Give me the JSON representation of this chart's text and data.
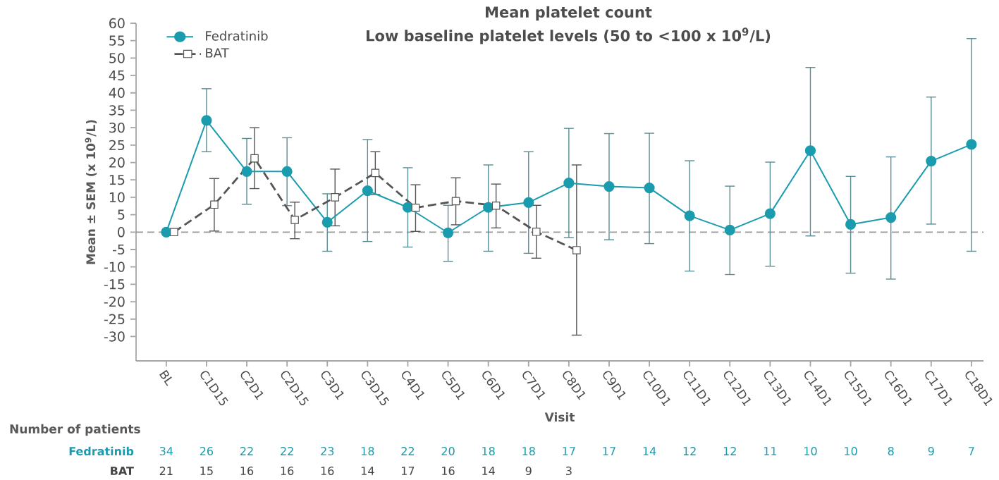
{
  "chart_data": {
    "type": "line",
    "title": "Mean platelet count",
    "subtitle": "Low baseline platelet levels (50 to <100 x 10$^{9}$/L)",
    "xlabel": "Visit",
    "ylabel": "Mean ± SEM (x 10$^{9}$/L)",
    "categories": [
      "BL",
      "C1D15",
      "C2D1",
      "C2D15",
      "C3D1",
      "C3D15",
      "C4D1",
      "C5D1",
      "C6D1",
      "C7D1",
      "C8D1",
      "C9D1",
      "C10D1",
      "C11D1",
      "C12D1",
      "C13D1",
      "C14D1",
      "C15D1",
      "C16D1",
      "C17D1",
      "C18D1"
    ],
    "series": [
      {
        "name": "Fedratinib",
        "color": "#1a9cae",
        "marker": "circle",
        "line_style": "solid",
        "values": [
          0,
          32.1,
          17.4,
          17.4,
          2.8,
          11.9,
          7.1,
          -0.2,
          7.1,
          8.5,
          14.1,
          13.1,
          12.7,
          4.7,
          0.6,
          5.3,
          23.4,
          2.2,
          4.2,
          20.4,
          25.2
        ],
        "errors": [
          null,
          [
            23.1,
            41.2
          ],
          [
            8.0,
            26.9
          ],
          [
            7.6,
            27.1
          ],
          [
            -5.5,
            11.0
          ],
          [
            -2.7,
            26.6
          ],
          [
            -4.3,
            18.5
          ],
          [
            -8.4,
            7.7
          ],
          [
            -5.5,
            19.3
          ],
          [
            -6.1,
            23.1
          ],
          [
            -1.6,
            29.8
          ],
          [
            -2.2,
            28.3
          ],
          [
            -3.3,
            28.4
          ],
          [
            -11.2,
            20.5
          ],
          [
            -12.2,
            13.2
          ],
          [
            -9.8,
            20.1
          ],
          [
            -1.1,
            47.3
          ],
          [
            -11.8,
            16.0
          ],
          [
            -13.5,
            21.6
          ],
          [
            2.3,
            38.8
          ],
          [
            -5.5,
            55.6
          ]
        ]
      },
      {
        "name": "BAT",
        "color": "#555555",
        "marker": "square",
        "line_style": "dashed",
        "values": [
          0,
          7.9,
          21.2,
          3.5,
          10.0,
          17.0,
          7.0,
          8.9,
          7.6,
          0.1,
          -5.2,
          null,
          null,
          null,
          null,
          null,
          null,
          null,
          null,
          null,
          null
        ],
        "errors": [
          null,
          [
            0.3,
            15.4
          ],
          [
            12.5,
            30.0
          ],
          [
            -1.9,
            8.6
          ],
          [
            1.8,
            18.1
          ],
          [
            10.8,
            23.1
          ],
          [
            0.2,
            13.6
          ],
          [
            2.1,
            15.6
          ],
          [
            1.2,
            13.8
          ],
          [
            -7.5,
            7.7
          ],
          [
            -29.6,
            19.3
          ],
          null,
          null,
          null,
          null,
          null,
          null,
          null,
          null,
          null,
          null
        ]
      }
    ],
    "ylim": [
      -37,
      60
    ],
    "yticks": [
      -30,
      -25,
      -20,
      -15,
      -10,
      -5,
      0,
      5,
      10,
      15,
      20,
      25,
      30,
      35,
      40,
      45,
      50,
      55,
      60
    ],
    "ref_lines": [
      {
        "axis": "y",
        "value": 0,
        "color": "#999999",
        "line_style": "dashed"
      }
    ],
    "grid": false,
    "legend": "top left",
    "annotations": [
      "Number of patients",
      "34",
      "26",
      "22",
      "22",
      "23",
      "18",
      "22",
      "20",
      "18",
      "18",
      "17",
      "17",
      "14",
      "12",
      "12",
      "11",
      "10",
      "10",
      "8",
      "9",
      "7",
      "21",
      "15",
      "16",
      "16",
      "16",
      "14",
      "17",
      "16",
      "14",
      "9",
      "3"
    ]
  }
}
